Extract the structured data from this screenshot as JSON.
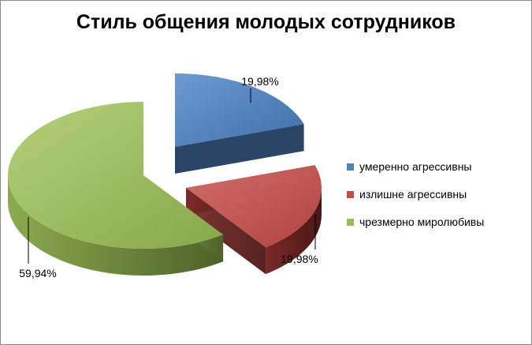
{
  "chart_data": {
    "type": "pie",
    "title": "Стиль общения молодых сотрудников",
    "exploded": true,
    "three_d": true,
    "legend_position": "right",
    "slices": [
      {
        "name": "умеренно агрессивны",
        "value": 19.98,
        "label": "19,98%",
        "color": "#4f81bd"
      },
      {
        "name": "излишне агрессивны",
        "value": 19.98,
        "label": "19,98%",
        "color": "#c0504d"
      },
      {
        "name": "чрезмерно миролюбивы",
        "value": 59.94,
        "label": "59,94%",
        "color": "#9bbb59"
      }
    ]
  }
}
